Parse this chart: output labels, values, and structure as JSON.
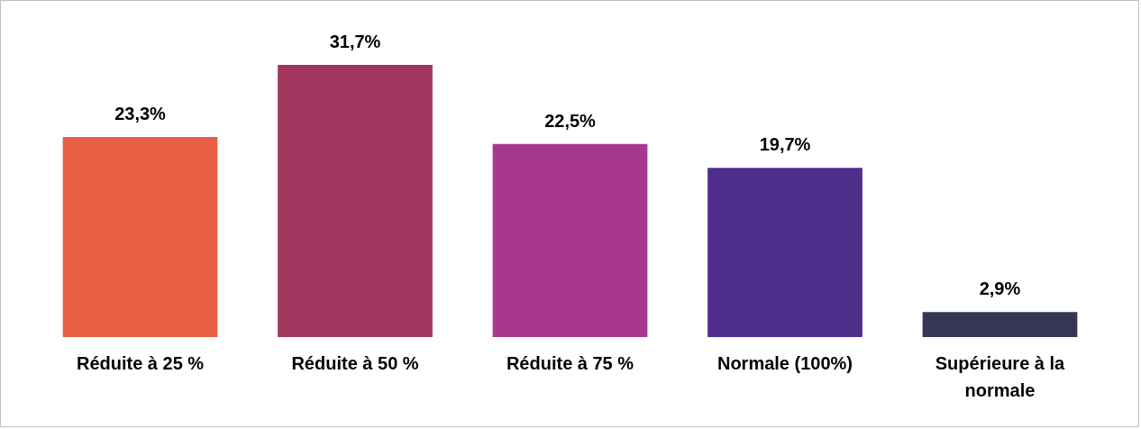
{
  "chart_data": {
    "type": "bar",
    "categories": [
      "Réduite à 25 %",
      "Réduite à 50 %",
      "Réduite à 75 %",
      "Normale (100%)",
      "Supérieure à la normale"
    ],
    "values": [
      23.3,
      31.7,
      22.5,
      19.7,
      2.9
    ],
    "colors": [
      "#e95f44",
      "#a3365f",
      "#a7388d",
      "#4f2d8a",
      "#363755"
    ],
    "value_labels": [
      "23,3%",
      "31,7%",
      "22,5%",
      "19,7%",
      "2,9%"
    ],
    "grid": false
  }
}
